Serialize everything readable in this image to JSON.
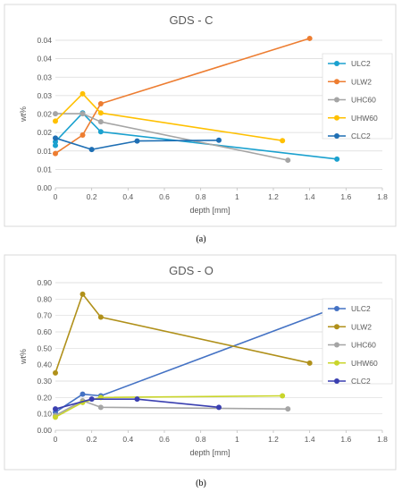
{
  "chart_data": [
    {
      "type": "line",
      "title": "GDS - C",
      "xlabel": "depth [mm]",
      "ylabel": "wt%",
      "xlim": [
        0,
        1.8
      ],
      "ylim": [
        0,
        0.04
      ],
      "x_ticks": [
        "0",
        "0.2",
        "0.4",
        "0.6",
        "0.8",
        "1",
        "1.2",
        "1.4",
        "1.6",
        "1.8"
      ],
      "y_ticks": [
        "0.00",
        "0.01",
        "0.01",
        "0.02",
        "0.02",
        "0.03",
        "0.03",
        "0.04",
        "0.04"
      ],
      "grid": "horizontal",
      "legend": "right",
      "panel_label": "(a)",
      "series": [
        {
          "name": "ULC2",
          "color": "#1BA1CF",
          "x": [
            0,
            0,
            0.15,
            0.25,
            1.55
          ],
          "y": [
            0.0115,
            0.0125,
            0.0203,
            0.0152,
            0.0078
          ]
        },
        {
          "name": "ULW2",
          "color": "#ED7D31",
          "x": [
            0,
            0.15,
            0.25,
            1.4
          ],
          "y": [
            0.0093,
            0.0143,
            0.0228,
            0.0405
          ]
        },
        {
          "name": "UHC60",
          "color": "#A5A5A5",
          "x": [
            0,
            0.15,
            0.25,
            1.28
          ],
          "y": [
            0.0201,
            0.0201,
            0.0179,
            0.0075
          ]
        },
        {
          "name": "UHW60",
          "color": "#FFC000",
          "x": [
            0,
            0.15,
            0.25,
            1.25
          ],
          "y": [
            0.0181,
            0.0255,
            0.0203,
            0.0128
          ]
        },
        {
          "name": "CLC2",
          "color": "#1F6FB4",
          "x": [
            0,
            0.2,
            0.45,
            0.9
          ],
          "y": [
            0.0135,
            0.0104,
            0.0127,
            0.0129
          ]
        }
      ]
    },
    {
      "type": "line",
      "title": "GDS - O",
      "xlabel": "depth [mm]",
      "ylabel": "wt%",
      "xlim": [
        0,
        1.8
      ],
      "ylim": [
        0,
        0.9
      ],
      "x_ticks": [
        "0",
        "0.2",
        "0.4",
        "0.6",
        "0.8",
        "1",
        "1.2",
        "1.4",
        "1.6",
        "1.8"
      ],
      "y_ticks": [
        "0.00",
        "0.10",
        "0.20",
        "0.30",
        "0.40",
        "0.50",
        "0.60",
        "0.70",
        "0.80",
        "0.90"
      ],
      "grid": "horizontal",
      "legend": "right",
      "panel_label": "(b)",
      "series": [
        {
          "name": "ULC2",
          "color": "#4472C4",
          "x": [
            0,
            0.15,
            0.25,
            1.55
          ],
          "y": [
            0.11,
            0.22,
            0.21,
            0.75
          ]
        },
        {
          "name": "ULW2",
          "color": "#B0901A",
          "x": [
            0,
            0.15,
            0.25,
            1.4
          ],
          "y": [
            0.35,
            0.83,
            0.69,
            0.41
          ]
        },
        {
          "name": "UHC60",
          "color": "#A5A5A5",
          "x": [
            0,
            0.15,
            0.25,
            1.28
          ],
          "y": [
            0.09,
            0.18,
            0.14,
            0.13
          ]
        },
        {
          "name": "UHW60",
          "color": "#C9D52B",
          "x": [
            0,
            0.15,
            0.25,
            1.25
          ],
          "y": [
            0.08,
            0.17,
            0.2,
            0.21
          ]
        },
        {
          "name": "CLC2",
          "color": "#3A3FB0",
          "x": [
            0,
            0.2,
            0.45,
            0.9
          ],
          "y": [
            0.13,
            0.19,
            0.19,
            0.14
          ]
        }
      ]
    }
  ]
}
